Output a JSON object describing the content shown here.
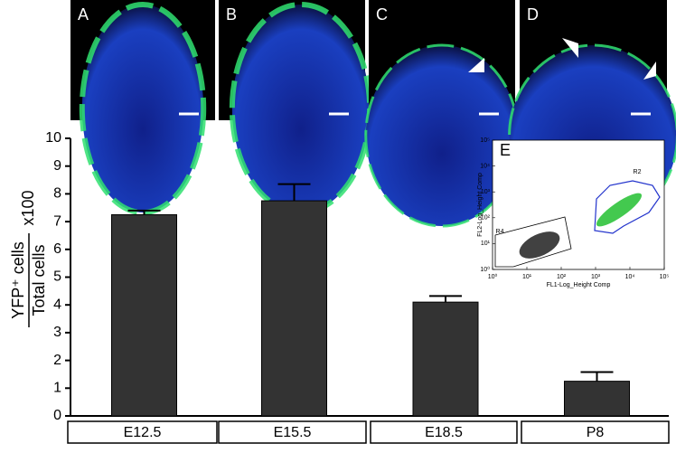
{
  "panels": [
    {
      "label": "A"
    },
    {
      "label": "B"
    },
    {
      "label": "C"
    },
    {
      "label": "D"
    }
  ],
  "chart_data": [
    {
      "type": "bar",
      "y_label": {
        "numerator": "YFP⁺ cells",
        "denominator": "Total cells",
        "factor": "x100"
      },
      "categories": [
        "E12.5",
        "E15.5",
        "E18.5",
        "P8"
      ],
      "values": [
        7.25,
        7.75,
        4.1,
        1.25
      ],
      "errors": [
        0.15,
        0.6,
        0.22,
        0.33
      ],
      "color": "#333333",
      "ylim": [
        0,
        10
      ],
      "yticks": [
        0,
        1,
        2,
        3,
        4,
        5,
        6,
        7,
        8,
        9,
        10
      ]
    },
    {
      "type": "scatter",
      "panel_label": "E",
      "x_label": "FL1-Log_Height Comp",
      "y_label": "FL2-Log_Height Comp",
      "log_scale": true,
      "xlim": [
        1,
        100000
      ],
      "ylim": [
        1,
        100000
      ],
      "xticks": [
        {
          "value": 1,
          "label": "10⁰"
        },
        {
          "value": 10,
          "label": "10¹"
        },
        {
          "value": 100,
          "label": "10²"
        },
        {
          "value": 1000,
          "label": "10³"
        },
        {
          "value": 10000,
          "label": "10⁴"
        },
        {
          "value": 100000,
          "label": "10⁵"
        }
      ],
      "yticks": [
        {
          "value": 1,
          "label": "10⁰"
        },
        {
          "value": 10,
          "label": "10¹"
        },
        {
          "value": 100,
          "label": "10²"
        },
        {
          "value": 1000,
          "label": "10³"
        },
        {
          "value": 10000,
          "label": "10⁴"
        },
        {
          "value": 100000,
          "label": "10⁵"
        }
      ],
      "gates": [
        "R2",
        "R4"
      ]
    }
  ]
}
